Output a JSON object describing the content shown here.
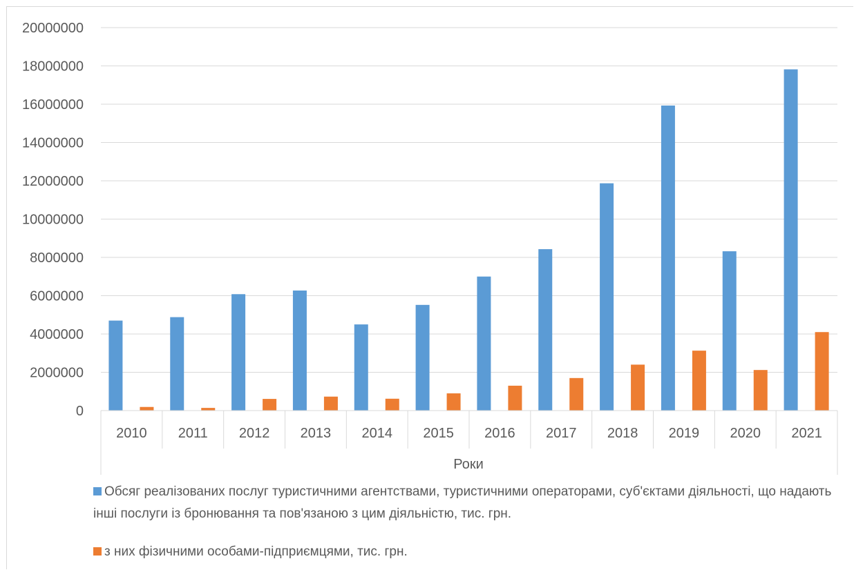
{
  "chart_data": {
    "type": "bar",
    "categories": [
      "2010",
      "2011",
      "2012",
      "2013",
      "2014",
      "2015",
      "2016",
      "2017",
      "2018",
      "2019",
      "2020",
      "2021"
    ],
    "series": [
      {
        "name": "Обсяг реалізованих послуг туристичними агентствами, туристичними операторами, суб'єктами діяльності, що надають інші послуги із бронювання та пов'язаною з цим діяльністю, тис. грн.",
        "color": "#5b9bd5",
        "values": [
          4700000,
          4880000,
          6080000,
          6270000,
          4500000,
          5520000,
          7000000,
          8430000,
          11870000,
          15930000,
          8320000,
          17820000
        ]
      },
      {
        "name": "з них фізичними особами-підприємцями, тис. грн.",
        "color": "#ed7d31",
        "values": [
          190000,
          140000,
          610000,
          730000,
          620000,
          900000,
          1300000,
          1700000,
          2400000,
          3130000,
          2120000,
          4100000
        ]
      }
    ],
    "xlabel": "Роки",
    "ylabel": "",
    "ylim": [
      0,
      20000000
    ],
    "yticks": [
      "0",
      "2000000",
      "4000000",
      "6000000",
      "8000000",
      "10000000",
      "12000000",
      "14000000",
      "16000000",
      "18000000",
      "20000000"
    ],
    "grid": true,
    "legend_position": "bottom"
  },
  "legend": {
    "series1_line1": "Обсяг реалізованих послуг туристичними агентствами, туристичними операторами, суб'єктами",
    "series1_line2": "діяльності, що надають інші послуги із бронювання та пов'язаною з цим діяльністю, тис. грн.",
    "series2": "з них фізичними особами-підприємцями, тис. грн."
  }
}
